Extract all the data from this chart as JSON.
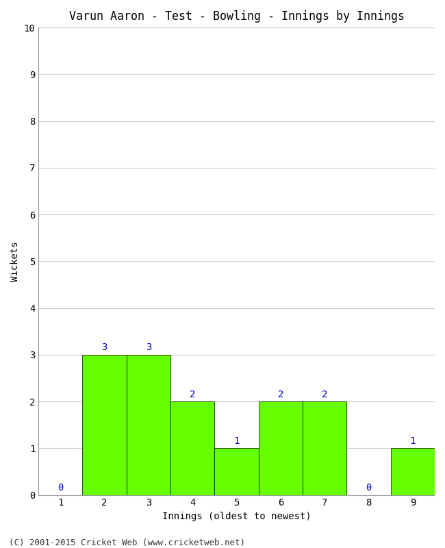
{
  "title": "Varun Aaron - Test - Bowling - Innings by Innings",
  "xlabel": "Innings (oldest to newest)",
  "ylabel": "Wickets",
  "categories": [
    "1",
    "2",
    "3",
    "4",
    "5",
    "6",
    "7",
    "8",
    "9"
  ],
  "values": [
    0,
    3,
    3,
    2,
    1,
    2,
    2,
    0,
    1
  ],
  "bar_color": "#66ff00",
  "bar_edge_color": "#000000",
  "label_color": "#0000cc",
  "ylim": [
    0,
    10
  ],
  "yticks": [
    0,
    1,
    2,
    3,
    4,
    5,
    6,
    7,
    8,
    9,
    10
  ],
  "background_color": "#ffffff",
  "plot_bg_color": "#ffffff",
  "grid_color": "#cccccc",
  "title_fontsize": 12,
  "axis_label_fontsize": 10,
  "tick_fontsize": 10,
  "footer": "(C) 2001-2015 Cricket Web (www.cricketweb.net)",
  "footer_fontsize": 9
}
